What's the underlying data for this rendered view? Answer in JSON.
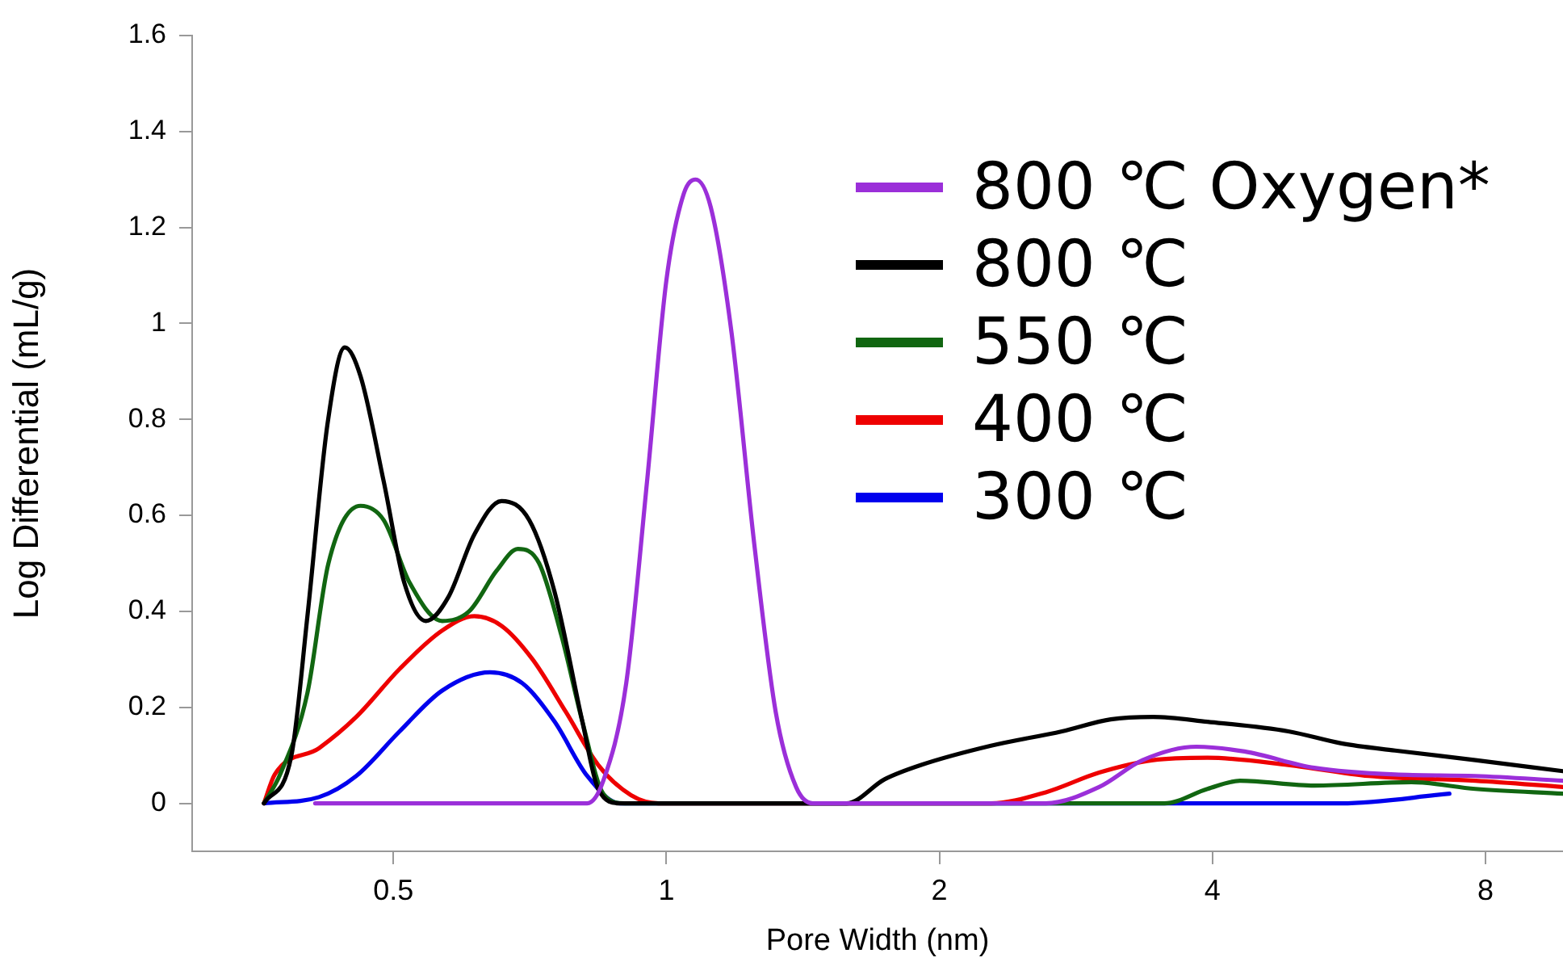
{
  "chart_data": {
    "type": "line",
    "xlabel": "Pore Width (nm)",
    "ylabel": "Log Differential (mL/g)",
    "log": "x",
    "xlim": [
      0.3,
      9.74
    ],
    "xticks": [
      0.5,
      1,
      2,
      4,
      8
    ],
    "ylim": [
      -0.1,
      1.6
    ],
    "yticks": [
      0,
      0.2,
      0.4,
      0.6,
      0.8,
      1,
      1.2,
      1.4,
      1.6
    ],
    "grid": false,
    "legend": "top right",
    "marker": "none",
    "line_style": "solid",
    "series": [
      {
        "name": "800 ℃ Oxygen*",
        "color": "#9b2fd9",
        "x": [
          0.41,
          0.818,
          0.852,
          0.903,
          0.952,
          1.0,
          1.045,
          1.077,
          1.12,
          1.18,
          1.25,
          1.32,
          1.39,
          1.45,
          2.62,
          3.0,
          3.35,
          3.84,
          4.34,
          5.18,
          6.36,
          7.8,
          9.74
        ],
        "values": [
          0,
          0,
          0.047,
          0.25,
          0.67,
          1.09,
          1.27,
          1.3,
          1.24,
          0.98,
          0.54,
          0.19,
          0.034,
          0,
          0,
          0.034,
          0.09,
          0.118,
          0.108,
          0.074,
          0.06,
          0.057,
          0.047
        ]
      },
      {
        "name": "800 ℃",
        "color": "#000000",
        "x": [
          0.36,
          0.386,
          0.402,
          0.423,
          0.442,
          0.46,
          0.488,
          0.514,
          0.543,
          0.575,
          0.614,
          0.658,
          0.706,
          0.753,
          0.808,
          0.841,
          0.889,
          1.58,
          1.74,
          1.91,
          2.28,
          2.73,
          3.09,
          3.44,
          3.95,
          4.85,
          5.55,
          6.36,
          7.8,
          9.74
        ],
        "values": [
          0,
          0.1,
          0.39,
          0.79,
          0.95,
          0.89,
          0.67,
          0.46,
          0.38,
          0.43,
          0.56,
          0.63,
          0.59,
          0.44,
          0.17,
          0.03,
          0,
          0,
          0.05,
          0.08,
          0.12,
          0.15,
          0.175,
          0.18,
          0.17,
          0.15,
          0.125,
          0.11,
          0.09,
          0.067
        ]
      },
      {
        "name": "550 ℃",
        "color": "#116611",
        "x": [
          0.36,
          0.375,
          0.402,
          0.424,
          0.46,
          0.488,
          0.521,
          0.566,
          0.606,
          0.65,
          0.686,
          0.724,
          0.766,
          0.808,
          0.852,
          0.9,
          3.54,
          3.95,
          4.29,
          5.18,
          6.63,
          7.8,
          9.74
        ],
        "values": [
          0,
          0.06,
          0.23,
          0.5,
          0.62,
          0.59,
          0.46,
          0.38,
          0.4,
          0.485,
          0.53,
          0.5,
          0.35,
          0.17,
          0.02,
          0,
          0,
          0.03,
          0.047,
          0.037,
          0.044,
          0.03,
          0.02
        ]
      },
      {
        "name": "400 ℃",
        "color": "#ee0000",
        "x": [
          0.36,
          0.37,
          0.414,
          0.455,
          0.508,
          0.566,
          0.614,
          0.658,
          0.712,
          0.775,
          0.841,
          0.914,
          0.98,
          2.28,
          2.62,
          3.0,
          3.44,
          3.95,
          4.85,
          5.95,
          7.8,
          9.74
        ],
        "values": [
          0,
          0.06,
          0.115,
          0.18,
          0.28,
          0.36,
          0.39,
          0.37,
          0.3,
          0.19,
          0.08,
          0.017,
          0,
          0,
          0.023,
          0.064,
          0.09,
          0.095,
          0.08,
          0.057,
          0.047,
          0.034
        ]
      },
      {
        "name": "300 ℃",
        "color": "#0000ee",
        "x": [
          0.36,
          0.414,
          0.455,
          0.508,
          0.566,
          0.639,
          0.694,
          0.753,
          0.818,
          0.889,
          5.55,
          7.3
        ],
        "values": [
          0,
          0.013,
          0.057,
          0.15,
          0.235,
          0.273,
          0.25,
          0.17,
          0.057,
          0,
          0,
          0.02
        ]
      }
    ]
  }
}
